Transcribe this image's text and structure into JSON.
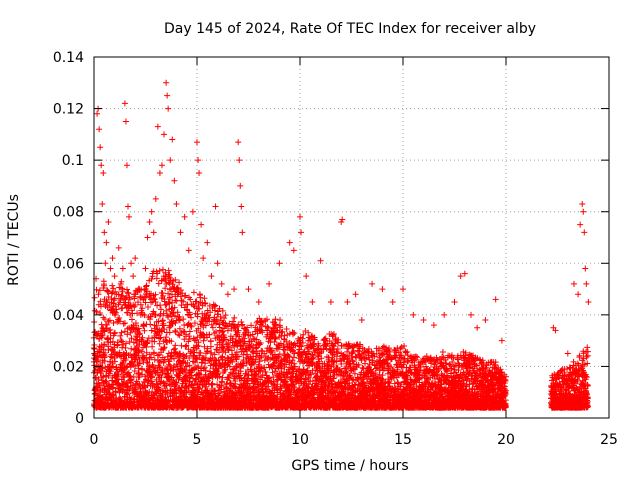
{
  "chart_data": {
    "type": "scatter",
    "title": "Day 145 of 2024, Rate Of TEC Index for receiver alby",
    "xlabel": "GPS time / hours",
    "ylabel": "ROTI / TECUs",
    "xlim": [
      0,
      25
    ],
    "ylim": [
      0,
      0.14
    ],
    "x_ticks": [
      0,
      5,
      10,
      15,
      20,
      25
    ],
    "x_tick_labels": [
      "0",
      "5",
      "10",
      "15",
      "20",
      "25"
    ],
    "y_ticks": [
      0,
      0.02,
      0.04,
      0.06,
      0.08,
      0.1,
      0.12,
      0.14
    ],
    "y_tick_labels": [
      "0",
      "0.02",
      "0.04",
      "0.06",
      "0.08",
      "0.1",
      "0.12",
      "0.14"
    ],
    "grid": true,
    "legend": "none",
    "marker": "plus",
    "color": "#ff0000",
    "series": [
      {
        "points": [
          [
            0.1,
            0.054
          ],
          [
            0.15,
            0.118
          ],
          [
            0.2,
            0.12
          ],
          [
            0.25,
            0.112
          ],
          [
            0.3,
            0.105
          ],
          [
            0.35,
            0.098
          ],
          [
            0.4,
            0.083
          ],
          [
            0.45,
            0.095
          ],
          [
            0.5,
            0.072
          ],
          [
            0.55,
            0.06
          ],
          [
            0.6,
            0.068
          ],
          [
            0.7,
            0.076
          ],
          [
            0.8,
            0.058
          ],
          [
            0.9,
            0.062
          ],
          [
            1.0,
            0.055
          ],
          [
            1.1,
            0.048
          ],
          [
            1.2,
            0.066
          ],
          [
            1.3,
            0.052
          ],
          [
            1.4,
            0.058
          ],
          [
            1.5,
            0.122
          ],
          [
            1.55,
            0.115
          ],
          [
            1.6,
            0.098
          ],
          [
            1.65,
            0.082
          ],
          [
            1.7,
            0.078
          ],
          [
            1.8,
            0.06
          ],
          [
            1.9,
            0.055
          ],
          [
            2.0,
            0.062
          ],
          [
            2.2,
            0.05
          ],
          [
            2.4,
            0.046
          ],
          [
            2.5,
            0.058
          ],
          [
            2.6,
            0.07
          ],
          [
            2.7,
            0.076
          ],
          [
            2.8,
            0.08
          ],
          [
            2.9,
            0.072
          ],
          [
            3.0,
            0.085
          ],
          [
            3.1,
            0.113
          ],
          [
            3.2,
            0.095
          ],
          [
            3.3,
            0.098
          ],
          [
            3.4,
            0.11
          ],
          [
            3.5,
            0.13
          ],
          [
            3.55,
            0.125
          ],
          [
            3.6,
            0.12
          ],
          [
            3.7,
            0.1
          ],
          [
            3.8,
            0.108
          ],
          [
            3.9,
            0.092
          ],
          [
            4.0,
            0.083
          ],
          [
            4.2,
            0.072
          ],
          [
            4.4,
            0.078
          ],
          [
            4.6,
            0.065
          ],
          [
            4.8,
            0.08
          ],
          [
            5.0,
            0.107
          ],
          [
            5.05,
            0.1
          ],
          [
            5.1,
            0.095
          ],
          [
            5.2,
            0.075
          ],
          [
            5.3,
            0.062
          ],
          [
            5.5,
            0.068
          ],
          [
            5.7,
            0.055
          ],
          [
            5.9,
            0.082
          ],
          [
            6.0,
            0.06
          ],
          [
            6.2,
            0.052
          ],
          [
            6.5,
            0.048
          ],
          [
            6.8,
            0.05
          ],
          [
            7.0,
            0.107
          ],
          [
            7.05,
            0.1
          ],
          [
            7.1,
            0.09
          ],
          [
            7.15,
            0.082
          ],
          [
            7.2,
            0.072
          ],
          [
            7.5,
            0.05
          ],
          [
            8.0,
            0.045
          ],
          [
            8.5,
            0.052
          ],
          [
            9.0,
            0.06
          ],
          [
            9.5,
            0.068
          ],
          [
            9.7,
            0.065
          ],
          [
            10.0,
            0.078
          ],
          [
            10.05,
            0.072
          ],
          [
            10.3,
            0.055
          ],
          [
            10.6,
            0.045
          ],
          [
            11.0,
            0.061
          ],
          [
            11.5,
            0.045
          ],
          [
            12.0,
            0.076
          ],
          [
            12.05,
            0.077
          ],
          [
            12.3,
            0.045
          ],
          [
            12.7,
            0.048
          ],
          [
            13.0,
            0.038
          ],
          [
            13.5,
            0.052
          ],
          [
            14.0,
            0.05
          ],
          [
            14.5,
            0.045
          ],
          [
            15.0,
            0.05
          ],
          [
            15.5,
            0.04
          ],
          [
            16.0,
            0.038
          ],
          [
            16.5,
            0.036
          ],
          [
            17.0,
            0.04
          ],
          [
            17.5,
            0.045
          ],
          [
            17.8,
            0.055
          ],
          [
            18.0,
            0.056
          ],
          [
            18.3,
            0.04
          ],
          [
            18.6,
            0.035
          ],
          [
            19.0,
            0.038
          ],
          [
            19.5,
            0.046
          ],
          [
            19.8,
            0.03
          ],
          [
            20.0,
            0.016
          ],
          [
            22.3,
            0.035
          ],
          [
            22.4,
            0.034
          ],
          [
            23.0,
            0.025
          ],
          [
            23.3,
            0.052
          ],
          [
            23.5,
            0.048
          ],
          [
            23.6,
            0.075
          ],
          [
            23.7,
            0.083
          ],
          [
            23.75,
            0.08
          ],
          [
            23.8,
            0.072
          ],
          [
            23.85,
            0.058
          ],
          [
            23.9,
            0.052
          ],
          [
            24.0,
            0.045
          ]
        ],
        "dense_band": [
          [
            0,
            0.045
          ],
          [
            0.5,
            0.05
          ],
          [
            1,
            0.048
          ],
          [
            1.5,
            0.05
          ],
          [
            2,
            0.045
          ],
          [
            2.5,
            0.05
          ],
          [
            3,
            0.055
          ],
          [
            3.5,
            0.055
          ],
          [
            4,
            0.05
          ],
          [
            4.5,
            0.045
          ],
          [
            5,
            0.045
          ],
          [
            5.5,
            0.042
          ],
          [
            6,
            0.04
          ],
          [
            6.5,
            0.035
          ],
          [
            7,
            0.035
          ],
          [
            7.5,
            0.032
          ],
          [
            8,
            0.035
          ],
          [
            8.5,
            0.035
          ],
          [
            9,
            0.035
          ],
          [
            9.5,
            0.03
          ],
          [
            10,
            0.03
          ],
          [
            10.5,
            0.03
          ],
          [
            11,
            0.025
          ],
          [
            11.5,
            0.03
          ],
          [
            12,
            0.025
          ],
          [
            12.5,
            0.025
          ],
          [
            13,
            0.025
          ],
          [
            13.5,
            0.022
          ],
          [
            14,
            0.025
          ],
          [
            14.5,
            0.022
          ],
          [
            15,
            0.025
          ],
          [
            15.5,
            0.02
          ],
          [
            16,
            0.02
          ],
          [
            16.5,
            0.02
          ],
          [
            17,
            0.022
          ],
          [
            17.5,
            0.02
          ],
          [
            18,
            0.022
          ],
          [
            18.5,
            0.02
          ],
          [
            19,
            0.018
          ],
          [
            19.5,
            0.018
          ],
          [
            20,
            0.012
          ],
          [
            22.2,
            0.012
          ],
          [
            22.6,
            0.015
          ],
          [
            23,
            0.015
          ],
          [
            23.5,
            0.02
          ],
          [
            24,
            0.025
          ]
        ]
      }
    ]
  }
}
